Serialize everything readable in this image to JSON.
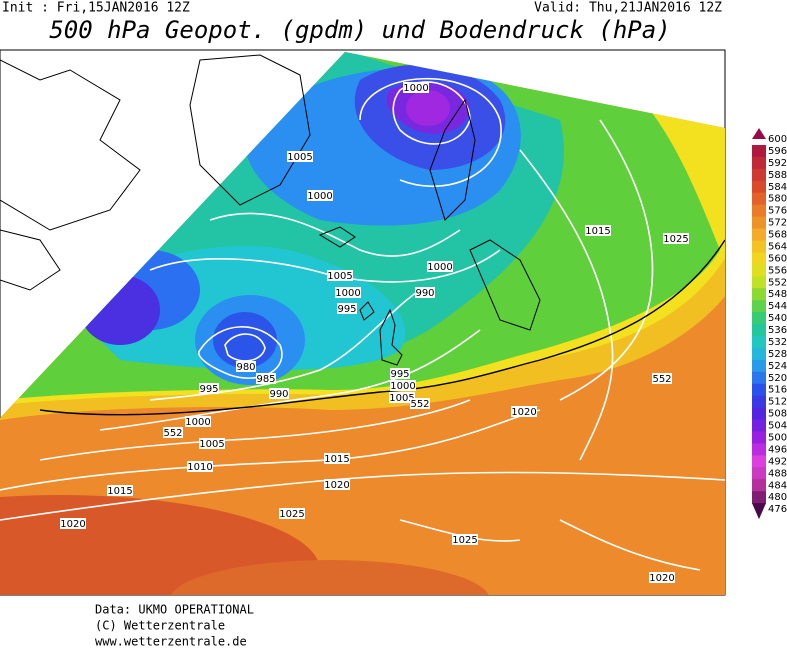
{
  "header": {
    "init": "Init : Fri,15JAN2016 12Z",
    "valid": "Valid: Thu,21JAN2016 12Z",
    "title": "500 hPa Geopot. (gpdm) und Bodendruck (hPa)"
  },
  "map": {
    "contour_labels": [
      "1000",
      "1005",
      "1000",
      "1015",
      "1025",
      "1000",
      "1005",
      "1000",
      "990",
      "995",
      "980",
      "985",
      "990",
      "995",
      "995",
      "1000",
      "1005",
      "552",
      "552",
      "1020",
      "1000",
      "552",
      "1005",
      "1010",
      "1015",
      "1020",
      "1015",
      "1025",
      "1020",
      "1025",
      "1020"
    ]
  },
  "colorbar": {
    "ticks": [
      600,
      596,
      592,
      588,
      584,
      580,
      576,
      572,
      568,
      564,
      560,
      556,
      552,
      548,
      544,
      540,
      536,
      532,
      528,
      524,
      520,
      516,
      512,
      508,
      504,
      500,
      496,
      492,
      488,
      484,
      480,
      476
    ],
    "colors": [
      "#9b0a45",
      "#c0283a",
      "#d9472a",
      "#e8762a",
      "#f2a52a",
      "#f6d21f",
      "#d5e51f",
      "#6ed43a",
      "#22c98a",
      "#21c7d0",
      "#2a8ff0",
      "#2a45e8",
      "#5a20e0",
      "#a020e0",
      "#e040e0",
      "#b0309a",
      "#4a0a4a"
    ]
  },
  "footer": {
    "line1": "Data: UKMO OPERATIONAL",
    "line2": "(C) Wetterzentrale",
    "line3": "www.wetterzentrale.de"
  }
}
